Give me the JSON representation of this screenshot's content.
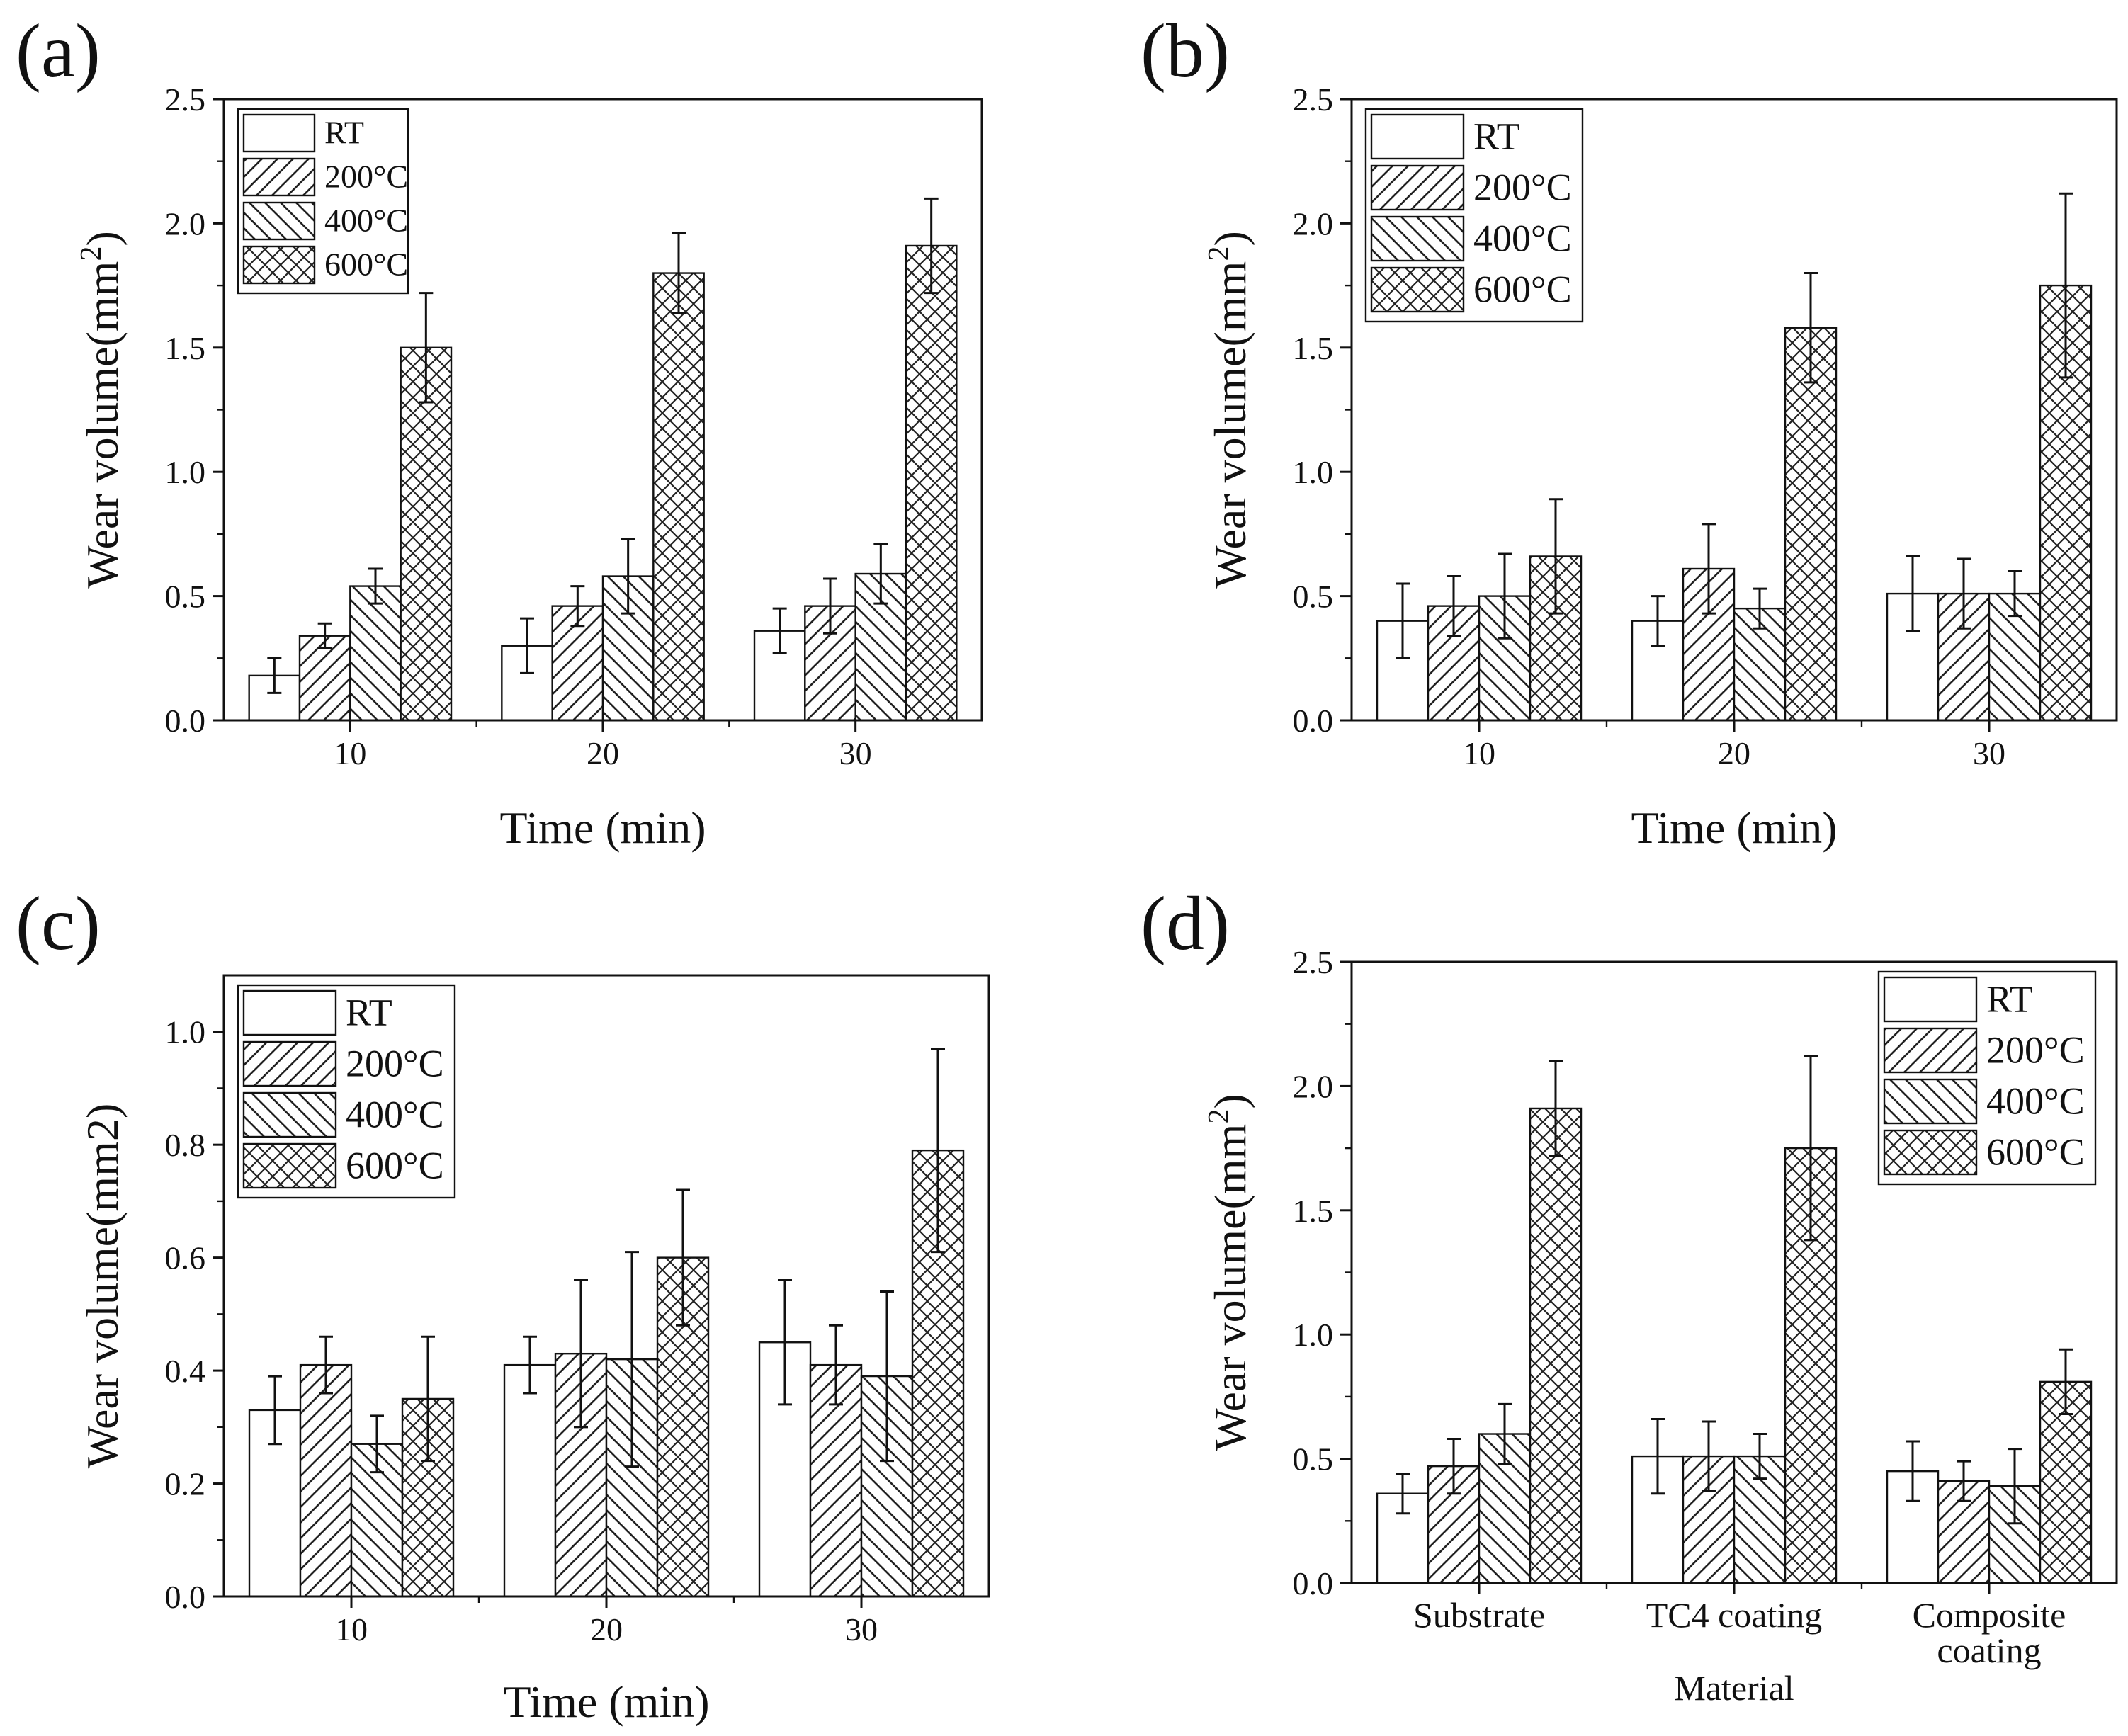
{
  "figure": {
    "description_labels": [
      "(a)",
      "(b)",
      "(c)",
      "(d)"
    ]
  },
  "colors": {
    "ink": "#111111",
    "bar_fill": "#ffffff",
    "hatch_dark": "#222222",
    "hatch_light": "#b5b5b5"
  },
  "chart_data": [
    {
      "panel": "(a)",
      "type": "bar",
      "title": "",
      "xlabel": "Time (min)",
      "ylabel": "Wear volume(mm",
      "ylabel_sup": "2",
      "ylabel_close": ")",
      "categories": [
        "10",
        "20",
        "30"
      ],
      "ylim": [
        0,
        2.5
      ],
      "yticks": [
        0.0,
        0.5,
        1.0,
        1.5,
        2.0,
        2.5
      ],
      "ytick_decimals": 1,
      "legend_position": "top-left",
      "series": [
        {
          "name": "RT",
          "pattern": "none",
          "values": [
            0.18,
            0.3,
            0.36
          ],
          "errors": [
            0.07,
            0.11,
            0.09
          ]
        },
        {
          "name": "200°C",
          "pattern": "fwd",
          "values": [
            0.34,
            0.46,
            0.46
          ],
          "errors": [
            0.05,
            0.08,
            0.11
          ]
        },
        {
          "name": "400°C",
          "pattern": "back",
          "values": [
            0.54,
            0.58,
            0.59
          ],
          "errors": [
            0.07,
            0.15,
            0.12
          ]
        },
        {
          "name": "600°C",
          "pattern": "cross",
          "values": [
            1.5,
            1.8,
            1.91
          ],
          "errors": [
            0.22,
            0.16,
            0.19
          ]
        }
      ]
    },
    {
      "panel": "(b)",
      "type": "bar",
      "title": "",
      "xlabel": "Time (min)",
      "ylabel": "Wear volume(mm",
      "ylabel_sup": "2",
      "ylabel_close": ")",
      "categories": [
        "10",
        "20",
        "30"
      ],
      "ylim": [
        0,
        2.5
      ],
      "yticks": [
        0.0,
        0.5,
        1.0,
        1.5,
        2.0,
        2.5
      ],
      "ytick_decimals": 1,
      "legend_position": "top-left",
      "series": [
        {
          "name": "RT",
          "pattern": "none",
          "values": [
            0.4,
            0.4,
            0.51
          ],
          "errors": [
            0.15,
            0.1,
            0.15
          ]
        },
        {
          "name": "200°C",
          "pattern": "fwd",
          "values": [
            0.46,
            0.61,
            0.51
          ],
          "errors": [
            0.12,
            0.18,
            0.14
          ]
        },
        {
          "name": "400°C",
          "pattern": "back",
          "values": [
            0.5,
            0.45,
            0.51
          ],
          "errors": [
            0.17,
            0.08,
            0.09
          ]
        },
        {
          "name": "600°C",
          "pattern": "cross",
          "values": [
            0.66,
            1.58,
            1.75
          ],
          "errors": [
            0.23,
            0.22,
            0.37
          ]
        }
      ]
    },
    {
      "panel": "(c)",
      "type": "bar",
      "title": "",
      "xlabel": "Time (min)",
      "ylabel": "Wear volume(mm2)",
      "ylabel_sup": "",
      "ylabel_close": "",
      "categories": [
        "10",
        "20",
        "30"
      ],
      "ylim": [
        0,
        1.1
      ],
      "yticks": [
        0.0,
        0.2,
        0.4,
        0.6,
        0.8,
        1.0
      ],
      "ytick_decimals": 1,
      "legend_position": "top-left",
      "series": [
        {
          "name": "RT",
          "pattern": "none",
          "values": [
            0.33,
            0.41,
            0.45
          ],
          "errors": [
            0.06,
            0.05,
            0.11
          ]
        },
        {
          "name": "200°C",
          "pattern": "fwd",
          "values": [
            0.41,
            0.43,
            0.41
          ],
          "errors": [
            0.05,
            0.13,
            0.07
          ]
        },
        {
          "name": "400°C",
          "pattern": "back",
          "values": [
            0.27,
            0.42,
            0.39
          ],
          "errors": [
            0.05,
            0.19,
            0.15
          ]
        },
        {
          "name": "600°C",
          "pattern": "cross",
          "values": [
            0.35,
            0.6,
            0.79
          ],
          "errors": [
            0.11,
            0.12,
            0.18
          ]
        }
      ]
    },
    {
      "panel": "(d)",
      "type": "bar",
      "title": "",
      "xlabel": "Material",
      "ylabel": "Wear volume(mm",
      "ylabel_sup": "2",
      "ylabel_close": ")",
      "categories": [
        "Substrate",
        "TC4 coating",
        "Composite coating"
      ],
      "category_lines": [
        [
          "Substrate"
        ],
        [
          "TC4 coating"
        ],
        [
          "Composite",
          "coating"
        ]
      ],
      "ylim": [
        0,
        2.5
      ],
      "yticks": [
        0.0,
        0.5,
        1.0,
        1.5,
        2.0,
        2.5
      ],
      "ytick_decimals": 1,
      "legend_position": "top-right",
      "series": [
        {
          "name": "RT",
          "pattern": "none",
          "values": [
            0.36,
            0.51,
            0.45
          ],
          "errors": [
            0.08,
            0.15,
            0.12
          ]
        },
        {
          "name": "200°C",
          "pattern": "fwd",
          "values": [
            0.47,
            0.51,
            0.41
          ],
          "errors": [
            0.11,
            0.14,
            0.08
          ]
        },
        {
          "name": "400°C",
          "pattern": "back",
          "values": [
            0.6,
            0.51,
            0.39
          ],
          "errors": [
            0.12,
            0.09,
            0.15
          ]
        },
        {
          "name": "600°C",
          "pattern": "cross",
          "values": [
            1.91,
            1.75,
            0.81
          ],
          "errors": [
            0.19,
            0.37,
            0.13
          ]
        }
      ]
    }
  ]
}
